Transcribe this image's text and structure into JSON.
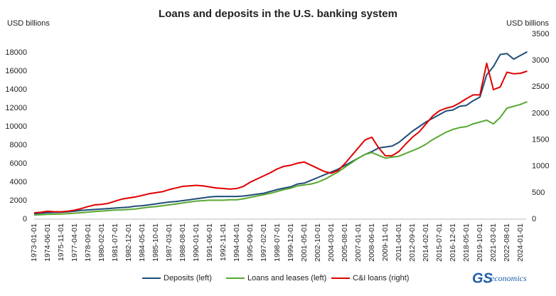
{
  "chart_data": {
    "type": "line",
    "title": "Loans and deposits in the U.S. banking system",
    "y_label": "USD billions",
    "y2_label": "USD billions",
    "logo": {
      "first": "GS",
      "second": "economics"
    },
    "categories": [
      "1973-01-01",
      null,
      "1974-06-01",
      null,
      "1975-11-01",
      null,
      "1977-04-01",
      null,
      "1978-09-01",
      null,
      "1980-02-01",
      null,
      "1981-07-01",
      null,
      "1982-12-01",
      null,
      "1984-05-01",
      null,
      "1985-10-01",
      null,
      "1987-03-01",
      null,
      "1988-08-01",
      null,
      "1990-01-01",
      null,
      "1991-06-01",
      null,
      "1992-11-01",
      null,
      "1994-04-01",
      null,
      "1995-09-01",
      null,
      "1997-02-01",
      null,
      "1998-07-01",
      null,
      "1999-12-01",
      null,
      "2001-05-01",
      null,
      "2002-10-01",
      null,
      "2004-03-01",
      null,
      "2005-08-01",
      null,
      "2007-01-01",
      null,
      "2008-06-01",
      null,
      "2009-11-01",
      null,
      "2011-04-01",
      null,
      "2012-09-01",
      null,
      "2014-02-01",
      null,
      "2015-07-01",
      null,
      "2016-12-01",
      null,
      "2018-05-01",
      null,
      "2019-10-01",
      null,
      "2021-03-01",
      null,
      "2022-08-01",
      null,
      "2024-01-01",
      null
    ],
    "series": [
      {
        "name": "Deposits (left)",
        "color": "#1f4e79",
        "values": [
          600,
          650,
          700,
          730,
          750,
          800,
          870,
          950,
          1000,
          1050,
          1100,
          1150,
          1200,
          1250,
          1300,
          1400,
          1450,
          1550,
          1650,
          1750,
          1850,
          1900,
          2000,
          2100,
          2200,
          2300,
          2400,
          2450,
          2450,
          2450,
          2450,
          2500,
          2600,
          2700,
          2800,
          3000,
          3200,
          3350,
          3500,
          3800,
          3900,
          4200,
          4500,
          4800,
          5100,
          5400,
          5800,
          6200,
          6600,
          7000,
          7300,
          7700,
          7800,
          7900,
          8300,
          8900,
          9500,
          10000,
          10500,
          10900,
          11300,
          11700,
          11800,
          12200,
          12300,
          12800,
          13200,
          15600,
          16500,
          17800,
          17900,
          17300,
          17700,
          18100
        ]
      },
      {
        "name": "Loans and leases (left)",
        "color": "#5aa832",
        "values": [
          450,
          480,
          520,
          540,
          560,
          600,
          650,
          700,
          760,
          820,
          880,
          930,
          980,
          1000,
          1050,
          1100,
          1200,
          1300,
          1350,
          1450,
          1550,
          1650,
          1750,
          1850,
          1950,
          2000,
          2050,
          2050,
          2050,
          2100,
          2100,
          2200,
          2350,
          2500,
          2650,
          2800,
          3000,
          3200,
          3350,
          3600,
          3700,
          3800,
          4000,
          4300,
          4700,
          5100,
          5600,
          6100,
          6600,
          7000,
          7200,
          6900,
          6600,
          6700,
          6800,
          7100,
          7400,
          7700,
          8100,
          8600,
          9000,
          9400,
          9700,
          9900,
          10000,
          10300,
          10500,
          10700,
          10300,
          11000,
          12000,
          12200,
          12400,
          12700
        ]
      },
      {
        "name": "C&I loans (right)",
        "color": "#e00000",
        "axis": "y2",
        "values": [
          120,
          130,
          150,
          140,
          140,
          150,
          170,
          200,
          240,
          270,
          280,
          300,
          340,
          380,
          400,
          420,
          450,
          480,
          500,
          520,
          560,
          590,
          620,
          630,
          640,
          630,
          610,
          590,
          580,
          570,
          580,
          620,
          700,
          760,
          820,
          880,
          950,
          1000,
          1020,
          1060,
          1080,
          1020,
          960,
          900,
          870,
          920,
          1050,
          1200,
          1350,
          1500,
          1550,
          1350,
          1200,
          1200,
          1280,
          1420,
          1550,
          1650,
          1800,
          1950,
          2050,
          2100,
          2130,
          2200,
          2280,
          2350,
          2350,
          2950,
          2450,
          2500,
          2780,
          2750,
          2760,
          2800
        ]
      }
    ],
    "ylim": [
      0,
      20000
    ],
    "yticks": [
      0,
      2000,
      4000,
      6000,
      8000,
      10000,
      12000,
      14000,
      16000,
      18000
    ],
    "y2lim": [
      0,
      3500
    ],
    "y2ticks": [
      0,
      500,
      1000,
      1500,
      2000,
      2500,
      3000,
      3500
    ]
  }
}
